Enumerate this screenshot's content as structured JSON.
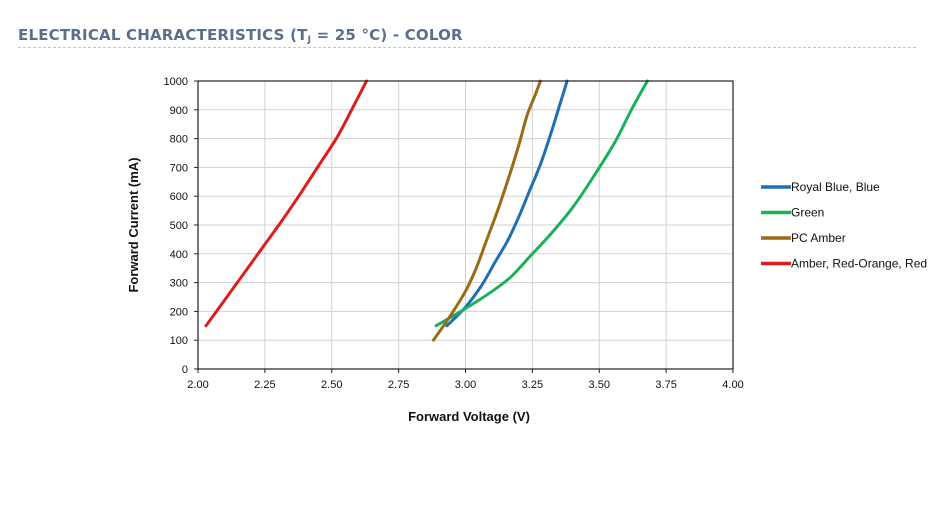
{
  "heading": {
    "prefix": "ELECTRICAL CHARACTERISTICS (T",
    "sub": "J",
    "suffix": " = 25 °C) - COLOR"
  },
  "chart_data": {
    "type": "line",
    "title": "",
    "xlabel": "Forward Voltage (V)",
    "ylabel": "Forward Current (mA)",
    "xlim": [
      2.0,
      4.0
    ],
    "ylim": [
      0,
      1000
    ],
    "xticks": [
      "2.00",
      "2.25",
      "2.50",
      "2.75",
      "3.00",
      "3.25",
      "3.50",
      "3.75",
      "4.00"
    ],
    "yticks": [
      "0",
      "100",
      "200",
      "300",
      "400",
      "500",
      "600",
      "700",
      "800",
      "900",
      "1000"
    ],
    "grid": true,
    "legend": "right",
    "series": [
      {
        "name": "Royal Blue, Blue",
        "color": "#1f6fb4",
        "x": [
          2.93,
          3.0,
          3.06,
          3.11,
          3.16,
          3.2,
          3.24,
          3.28,
          3.32,
          3.35,
          3.38
        ],
        "y": [
          150,
          215,
          290,
          370,
          450,
          530,
          620,
          710,
          820,
          910,
          1000
        ]
      },
      {
        "name": "Green",
        "color": "#1bb15a",
        "x": [
          2.89,
          3.0,
          3.1,
          3.17,
          3.24,
          3.32,
          3.4,
          3.48,
          3.56,
          3.62,
          3.68
        ],
        "y": [
          150,
          210,
          270,
          320,
          390,
          470,
          560,
          670,
          790,
          900,
          1000
        ]
      },
      {
        "name": "PC Amber",
        "color": "#9a6a14",
        "x": [
          2.88,
          2.94,
          3.0,
          3.04,
          3.08,
          3.12,
          3.16,
          3.2,
          3.23,
          3.26,
          3.28
        ],
        "y": [
          100,
          180,
          270,
          350,
          450,
          550,
          660,
          780,
          880,
          950,
          1000
        ]
      },
      {
        "name": "Amber, Red-Orange, Red",
        "color": "#e01d1d",
        "x": [
          2.03,
          2.1,
          2.17,
          2.24,
          2.31,
          2.38,
          2.45,
          2.52,
          2.58,
          2.63
        ],
        "y": [
          150,
          240,
          330,
          420,
          510,
          605,
          705,
          805,
          910,
          1000
        ]
      }
    ]
  }
}
